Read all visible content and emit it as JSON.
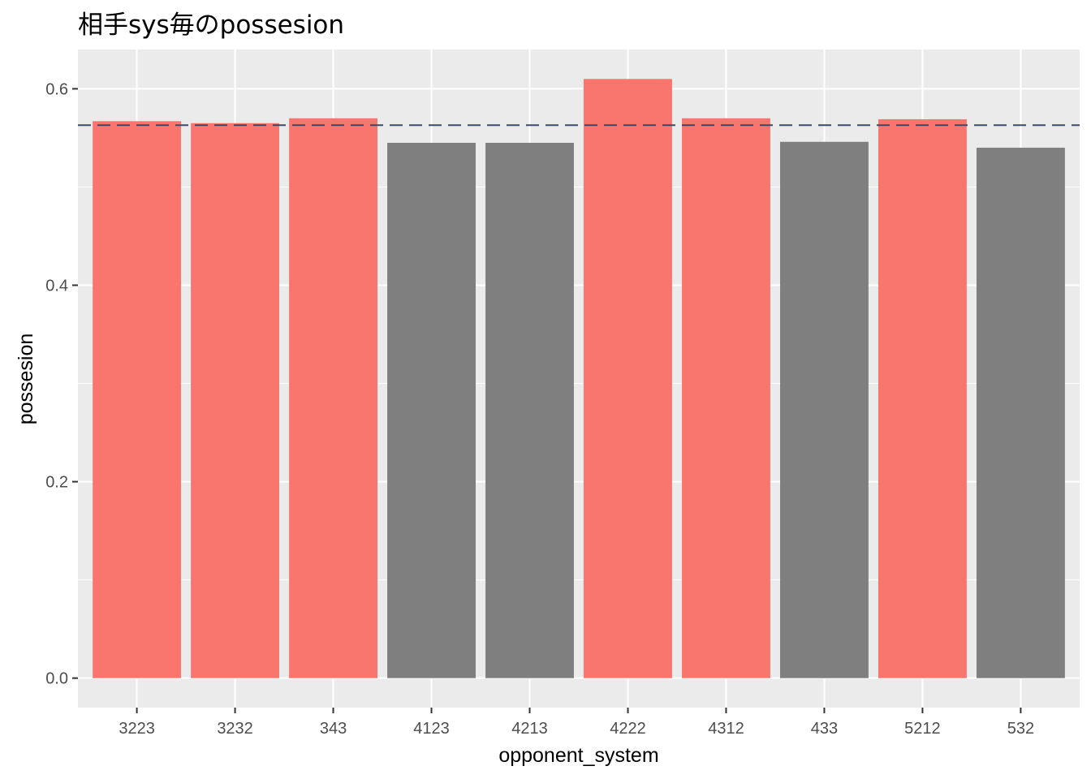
{
  "chart_data": {
    "type": "bar",
    "title": "相手sys毎のpossesion",
    "xlabel": "opponent_system",
    "ylabel": "possesion",
    "categories": [
      "3223",
      "3232",
      "343",
      "4123",
      "4213",
      "4222",
      "4312",
      "433",
      "5212",
      "532"
    ],
    "values": [
      0.567,
      0.565,
      0.57,
      0.545,
      0.545,
      0.61,
      0.57,
      0.546,
      0.569,
      0.54
    ],
    "above_reference": [
      true,
      true,
      true,
      false,
      false,
      true,
      true,
      false,
      true,
      false
    ],
    "reference_line": {
      "value": 0.563,
      "style": "dashed",
      "color": "#3b4a6b"
    },
    "ylim": [
      -0.03,
      0.64
    ],
    "yticks": [
      0.0,
      0.2,
      0.4,
      0.6
    ],
    "ytick_labels": [
      "0.0",
      "0.2",
      "0.4",
      "0.6"
    ],
    "grid": true,
    "legend": "none",
    "colors": {
      "panel": "#ebebeb",
      "grid": "#ffffff",
      "above": "#f8766d",
      "below": "#7f7f7f",
      "tick_text": "#4d4d4d",
      "tick_mark": "#333333"
    }
  }
}
